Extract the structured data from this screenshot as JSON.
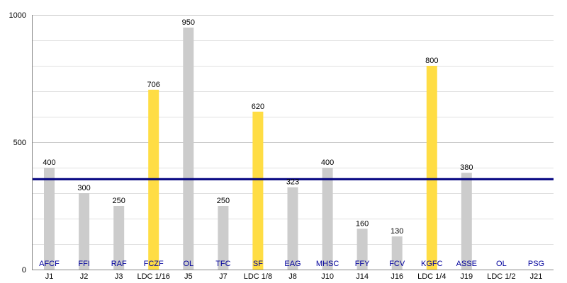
{
  "chart_data": {
    "type": "bar",
    "title": "",
    "xlabel": "",
    "ylabel": "",
    "ylim": [
      0,
      1000
    ],
    "y_ticks": [
      0,
      500,
      1000
    ],
    "grid": true,
    "categories": [
      "J1",
      "J2",
      "J3",
      "LDC 1/16",
      "J5",
      "J7",
      "LDC 1/8",
      "J8",
      "J10",
      "J14",
      "J16",
      "LDC 1/4",
      "J19",
      "LDC 1/2",
      "J21"
    ],
    "teams": [
      "AFCF",
      "FFI",
      "RAF",
      "FCZF",
      "OL",
      "TFC",
      "SF",
      "EAG",
      "MHSC",
      "FFY",
      "FCV",
      "KGFC",
      "ASSE",
      "OL",
      "PSG"
    ],
    "values": [
      400,
      300,
      250,
      706,
      950,
      250,
      620,
      323,
      400,
      160,
      130,
      800,
      380,
      null,
      null
    ],
    "cup_rounds": [
      false,
      false,
      false,
      true,
      false,
      false,
      true,
      false,
      false,
      false,
      false,
      true,
      false,
      true,
      false
    ],
    "reference_line": 355,
    "colors": {
      "league_bar": "#cccccc",
      "cup_bar": "#ffdd44",
      "reference_line": "#00007f",
      "team_label": "#00009c",
      "grid": "#e0e0e0",
      "axis": "#888888"
    }
  }
}
